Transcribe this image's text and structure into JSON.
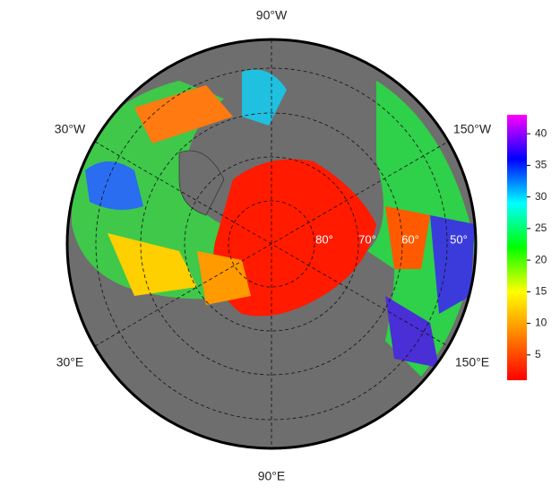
{
  "map": {
    "longitude_labels": [
      "90°W",
      "30°W",
      "150°W",
      "30°E",
      "150°E",
      "90°E"
    ],
    "latitude_labels": [
      "80°",
      "70°",
      "60°",
      "50°"
    ]
  },
  "colorbar": {
    "lim": [
      1,
      43
    ],
    "ticks": [
      5,
      10,
      15,
      20,
      25,
      30,
      35,
      40
    ],
    "colors": [
      "#ff0000",
      "#ff8000",
      "#ffff00",
      "#00ff00",
      "#00ffff",
      "#0000ff",
      "#ff00ff"
    ]
  }
}
